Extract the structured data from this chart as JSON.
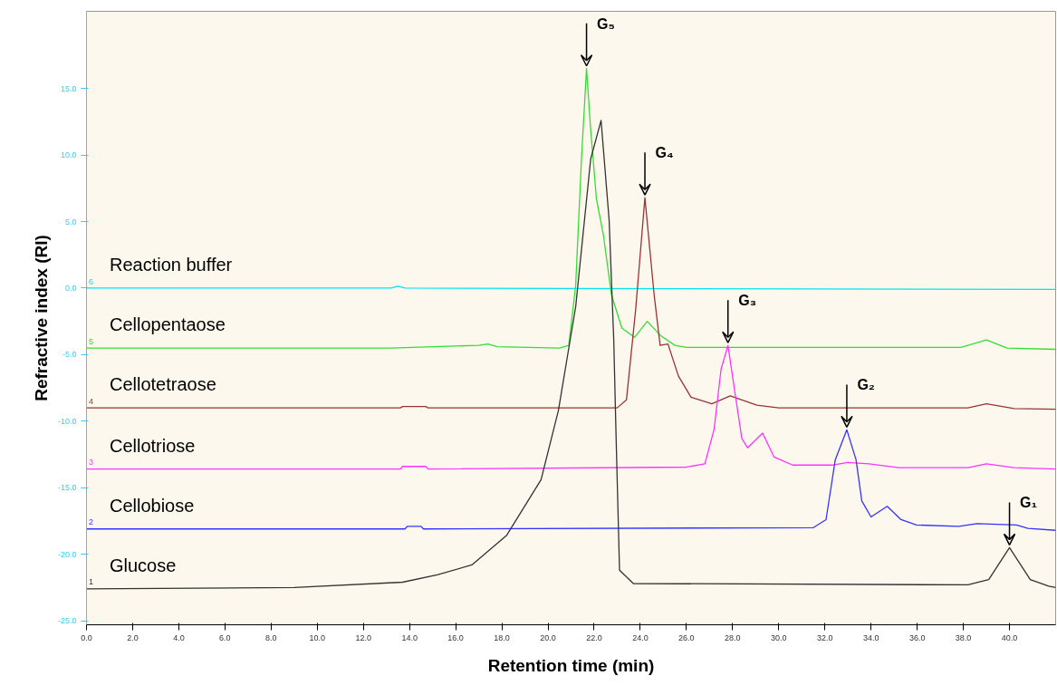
{
  "chart_data": {
    "type": "line",
    "xlabel": "Retention time (min)",
    "ylabel": "Refractive index (RI)",
    "xlim": [
      0,
      42
    ],
    "ylim": [
      -25.3,
      20.8
    ],
    "xticks": [
      {
        "value": 0,
        "label": "0.0"
      },
      {
        "value": 2,
        "label": "2.0"
      },
      {
        "value": 4,
        "label": "4.0"
      },
      {
        "value": 6,
        "label": "6.0"
      },
      {
        "value": 8,
        "label": "8.0"
      },
      {
        "value": 10,
        "label": "10.0"
      },
      {
        "value": 12,
        "label": "12.0"
      },
      {
        "value": 14,
        "label": "14.0"
      },
      {
        "value": 16,
        "label": "16.0"
      },
      {
        "value": 18,
        "label": "18.0"
      },
      {
        "value": 20,
        "label": "20.0"
      },
      {
        "value": 22,
        "label": "22.0"
      },
      {
        "value": 24,
        "label": "24.0"
      },
      {
        "value": 26,
        "label": "26.0"
      },
      {
        "value": 28,
        "label": "28.0"
      },
      {
        "value": 30,
        "label": "30.0"
      },
      {
        "value": 32,
        "label": "32.0"
      },
      {
        "value": 34,
        "label": "34.0"
      },
      {
        "value": 36,
        "label": "36.0"
      },
      {
        "value": 38,
        "label": "38.0"
      },
      {
        "value": 40,
        "label": "40.0"
      }
    ],
    "yticks": [
      {
        "value": -25,
        "label": "-25.0"
      },
      {
        "value": -20,
        "label": "-20.0"
      },
      {
        "value": -15,
        "label": "-15.0"
      },
      {
        "value": -10,
        "label": "-10.0"
      },
      {
        "value": -5,
        "label": "-5.0"
      },
      {
        "value": 0,
        "label": "0.0"
      },
      {
        "value": 5,
        "label": "5.0"
      },
      {
        "value": 10,
        "label": "10.0"
      },
      {
        "value": 15,
        "label": "15.0"
      }
    ],
    "grid": false,
    "marker": "none",
    "line_style": "solid",
    "series": [
      {
        "name": "Reaction buffer",
        "color": "#00e5ee",
        "x": [
          0,
          13.2,
          13.5,
          13.8,
          42
        ],
        "values": [
          0,
          0,
          0.15,
          0,
          -0.1
        ]
      },
      {
        "name": "Cellopentaose",
        "color": "#33dd33",
        "x": [
          0,
          13.2,
          17.0,
          17.4,
          17.8,
          20.5,
          20.9,
          21.2,
          21.45,
          21.67,
          21.85,
          22.1,
          22.4,
          22.75,
          23.2,
          23.75,
          24.3,
          24.9,
          25.5,
          26.0,
          37.9,
          39.0,
          39.9,
          42
        ],
        "values": [
          -4.5,
          -4.5,
          -4.3,
          -4.2,
          -4.4,
          -4.5,
          -4.3,
          0.2,
          9.7,
          16.5,
          11.9,
          6.7,
          4.0,
          -0.5,
          -3.0,
          -3.7,
          -2.5,
          -3.6,
          -4.3,
          -4.45,
          -4.45,
          -3.9,
          -4.5,
          -4.6
        ]
      },
      {
        "name": "Cellotetraose",
        "color": "#993333",
        "x": [
          0,
          13.6,
          13.7,
          14.7,
          14.8,
          23.0,
          23.4,
          23.8,
          24.2,
          24.6,
          24.86,
          25.2,
          25.65,
          26.2,
          27.1,
          27.9,
          29.05,
          30.0,
          38.2,
          39.0,
          40.2,
          42
        ],
        "values": [
          -9.0,
          -9.0,
          -8.9,
          -8.9,
          -9.0,
          -9.0,
          -8.4,
          -1.6,
          6.8,
          -0.5,
          -4.3,
          -4.2,
          -6.6,
          -8.2,
          -8.7,
          -8.1,
          -8.8,
          -9.0,
          -9.0,
          -8.7,
          -9.05,
          -9.1
        ]
      },
      {
        "name": "Cellotriose",
        "color": "#ff33ff",
        "x": [
          0,
          13.6,
          13.7,
          14.7,
          14.8,
          26.0,
          26.8,
          27.2,
          27.5,
          27.8,
          28.05,
          28.4,
          28.65,
          29.3,
          29.8,
          30.6,
          32.3,
          33.0,
          33.9,
          35.2,
          38.2,
          39.0,
          40.2,
          42
        ],
        "values": [
          -13.6,
          -13.6,
          -13.4,
          -13.4,
          -13.6,
          -13.45,
          -13.2,
          -10.6,
          -6.1,
          -4.3,
          -7.25,
          -11.3,
          -12.0,
          -10.9,
          -12.7,
          -13.3,
          -13.3,
          -13.1,
          -13.2,
          -13.5,
          -13.5,
          -13.2,
          -13.5,
          -13.6
        ]
      },
      {
        "name": "Cellobiose",
        "color": "#3333ff",
        "x": [
          0,
          13.8,
          13.9,
          14.5,
          14.6,
          31.5,
          32.05,
          32.45,
          32.95,
          33.35,
          33.6,
          34.0,
          34.7,
          35.3,
          35.97,
          37.8,
          38.6,
          40.3,
          40.8,
          42
        ],
        "values": [
          -18.1,
          -18.1,
          -17.9,
          -17.9,
          -18.1,
          -18.0,
          -17.4,
          -12.9,
          -10.65,
          -12.9,
          -16.0,
          -17.2,
          -16.4,
          -17.4,
          -17.8,
          -17.9,
          -17.7,
          -17.8,
          -18.05,
          -18.2
        ]
      },
      {
        "name": "Glucose",
        "color": "#333333",
        "x": [
          0,
          9.0,
          13.7,
          15.2,
          16.7,
          18.2,
          19.7,
          20.45,
          21.2,
          21.85,
          22.3,
          22.65,
          22.85,
          22.95,
          23.1,
          23.7,
          38.2,
          39.1,
          40.0,
          40.9,
          41.7,
          42
        ],
        "values": [
          -22.6,
          -22.5,
          -22.1,
          -21.55,
          -20.8,
          -18.6,
          -14.4,
          -9.2,
          -1.4,
          9.7,
          12.6,
          5.1,
          -3.9,
          -11.1,
          -21.2,
          -22.2,
          -22.3,
          -21.9,
          -19.5,
          -21.9,
          -22.4,
          -22.5
        ]
      }
    ],
    "annotations": [
      {
        "text": "G₅",
        "x": 21.67,
        "y": 16.5
      },
      {
        "text": "G₄",
        "x": 24.2,
        "y": 6.8
      },
      {
        "text": "G₃",
        "x": 27.8,
        "y": -4.3
      },
      {
        "text": "G₂",
        "x": 32.95,
        "y": -10.65
      },
      {
        "text": "G₁",
        "x": 40.0,
        "y": -19.5
      },
      "6",
      "5",
      "4",
      "3",
      "2",
      "1"
    ]
  }
}
